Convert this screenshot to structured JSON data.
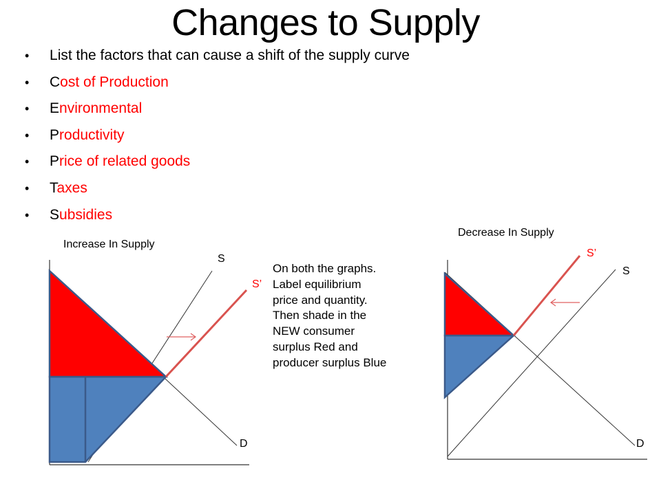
{
  "slide": {
    "title": "Changes to Supply",
    "bullets": [
      {
        "first": "L",
        "rest": "ist the factors that can cause a shift of the supply curve",
        "black": true
      },
      {
        "first": "C",
        "rest": "ost of Production",
        "black": false
      },
      {
        "first": "E",
        "rest": "nvironmental",
        "black": false
      },
      {
        "first": "P",
        "rest": "roductivity",
        "black": false
      },
      {
        "first": "P",
        "rest": "rice of related goods",
        "black": false
      },
      {
        "first": "T",
        "rest": "axes",
        "black": false
      },
      {
        "first": "S",
        "rest": "ubsidies",
        "black": false
      }
    ],
    "bullet_glyph": "•",
    "instructions": "On both the graphs. Label equilibrium price and quantity. Then shade in the NEW consumer surplus Red and producer surplus Blue"
  },
  "left_graph": {
    "title": "Increase In Supply",
    "supply_label": "S",
    "new_supply_label": "S’",
    "demand_label": "D",
    "shift_direction": "right"
  },
  "right_graph": {
    "title": "Decrease In Supply",
    "supply_label": "S",
    "new_supply_label": "S’",
    "demand_label": "D",
    "shift_direction": "left"
  },
  "colors": {
    "consumer_surplus": "#ff0000",
    "producer_surplus": "#4f81bd",
    "outline": "#3b5a8a",
    "new_supply": "#d9534f",
    "axis": "#333333",
    "arrow": "#e06060"
  }
}
